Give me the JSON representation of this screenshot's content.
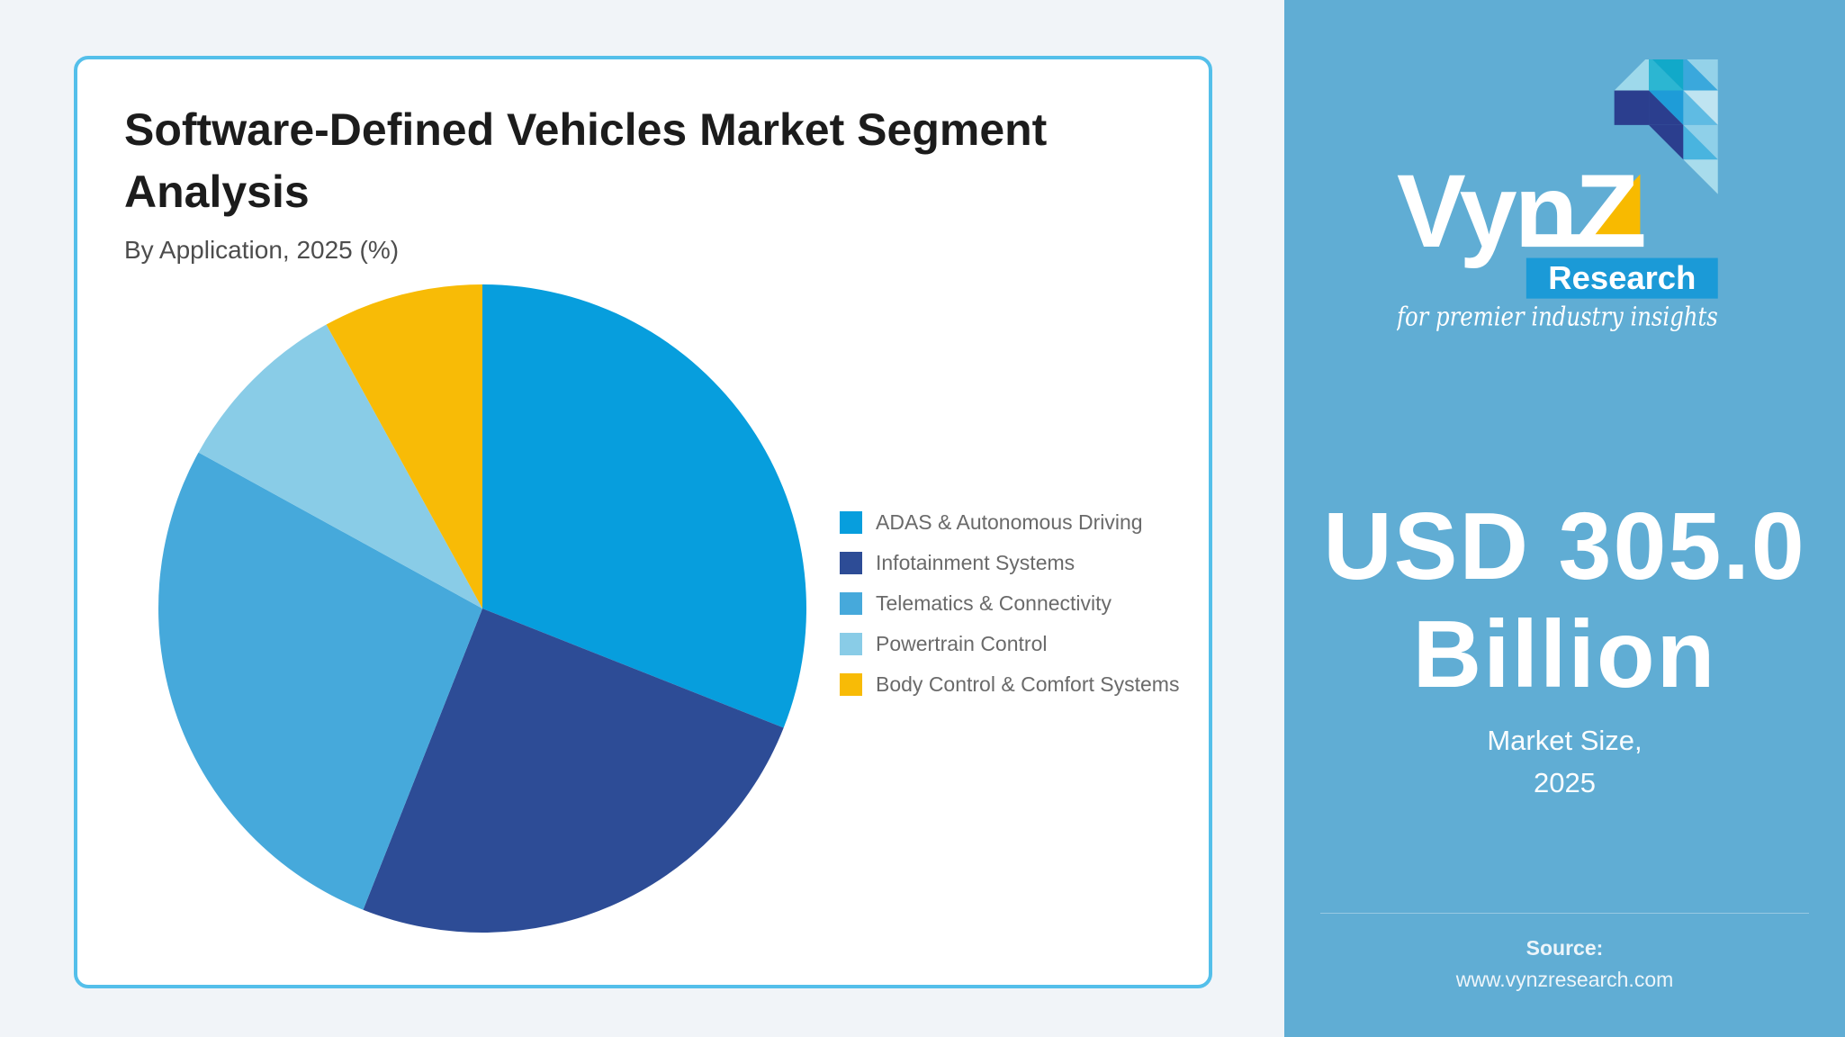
{
  "card": {
    "title": "Software-Defined Vehicles Market Segment Analysis",
    "subtitle": "By Application, 2025 (%)"
  },
  "chart_data": {
    "type": "pie",
    "title": "Software-Defined Vehicles Market Segment Analysis",
    "subtitle": "By Application, 2025 (%)",
    "unit": "%",
    "start_angle_deg": 0,
    "direction": "clockwise",
    "legend_position": "right",
    "labels": [
      "ADAS & Autonomous Driving",
      "Infotainment Systems",
      "Telematics & Connectivity",
      "Powertrain Control",
      "Body Control & Comfort Systems"
    ],
    "values": [
      31,
      25,
      27,
      9,
      8
    ],
    "colors": [
      "#079EDD",
      "#2D4C96",
      "#46A9DB",
      "#89CCE7",
      "#F8BB06"
    ]
  },
  "panel": {
    "background": "#60ADD4",
    "logo": {
      "brand": "VynZ",
      "sub": "Research",
      "tagline": "for premier industry insights",
      "sub_box_color": "#1B9AD7",
      "accent_yellow": "#F8BA00"
    },
    "market_value": "USD 305.0 Billion",
    "caption_line1": "Market Size,",
    "caption_line2": "2025",
    "source_label": "Source:",
    "source_url": "www.vynzresearch.com"
  }
}
